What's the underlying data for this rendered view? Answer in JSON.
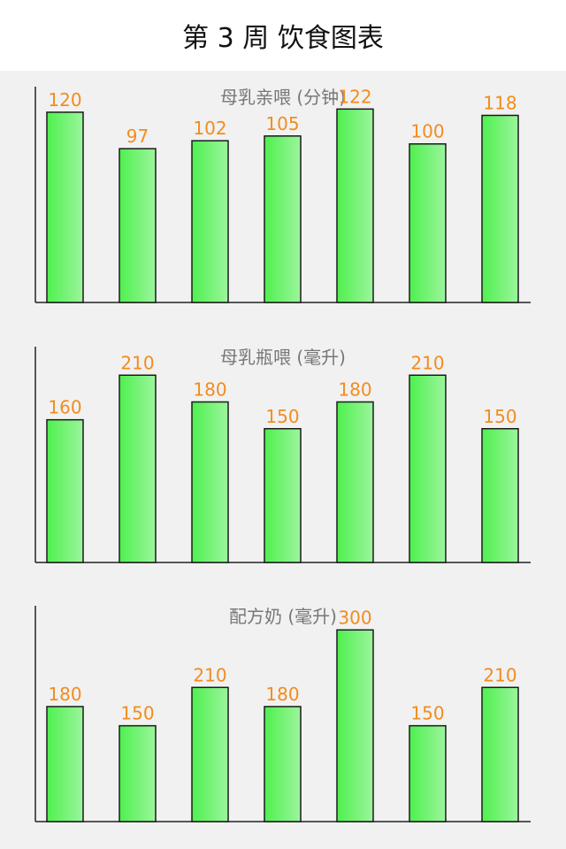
{
  "header": {
    "title": "第 3 周 饮食图表"
  },
  "colors": {
    "bar_fill_start": "#4ff04f",
    "bar_fill_end": "#9cf59c",
    "bar_stroke": "#1a1a1a",
    "value_label": "#f28c1e",
    "axis": "#222222",
    "title": "#777777"
  },
  "chart_data": [
    {
      "type": "bar",
      "title": "母乳亲喂 (分钟)",
      "xlabel": "",
      "ylabel": "",
      "ylim": [
        0,
        135
      ],
      "grid": false,
      "values": [
        120,
        97,
        102,
        105,
        122,
        100,
        118
      ],
      "value_labels": [
        "120",
        "97",
        "102",
        "105",
        "122",
        "100",
        "118"
      ]
    },
    {
      "type": "bar",
      "title": "母乳瓶喂 (毫升)",
      "xlabel": "",
      "ylabel": "",
      "ylim": [
        0,
        240
      ],
      "grid": false,
      "values": [
        160,
        210,
        180,
        150,
        180,
        210,
        150
      ],
      "value_labels": [
        "160",
        "210",
        "180",
        "150",
        "180",
        "210",
        "150"
      ]
    },
    {
      "type": "bar",
      "title": "配方奶 (毫升)",
      "xlabel": "",
      "ylabel": "",
      "ylim": [
        0,
        335
      ],
      "grid": false,
      "values": [
        180,
        150,
        210,
        180,
        300,
        150,
        210
      ],
      "value_labels": [
        "180",
        "150",
        "210",
        "180",
        "300",
        "150",
        "210"
      ]
    }
  ]
}
